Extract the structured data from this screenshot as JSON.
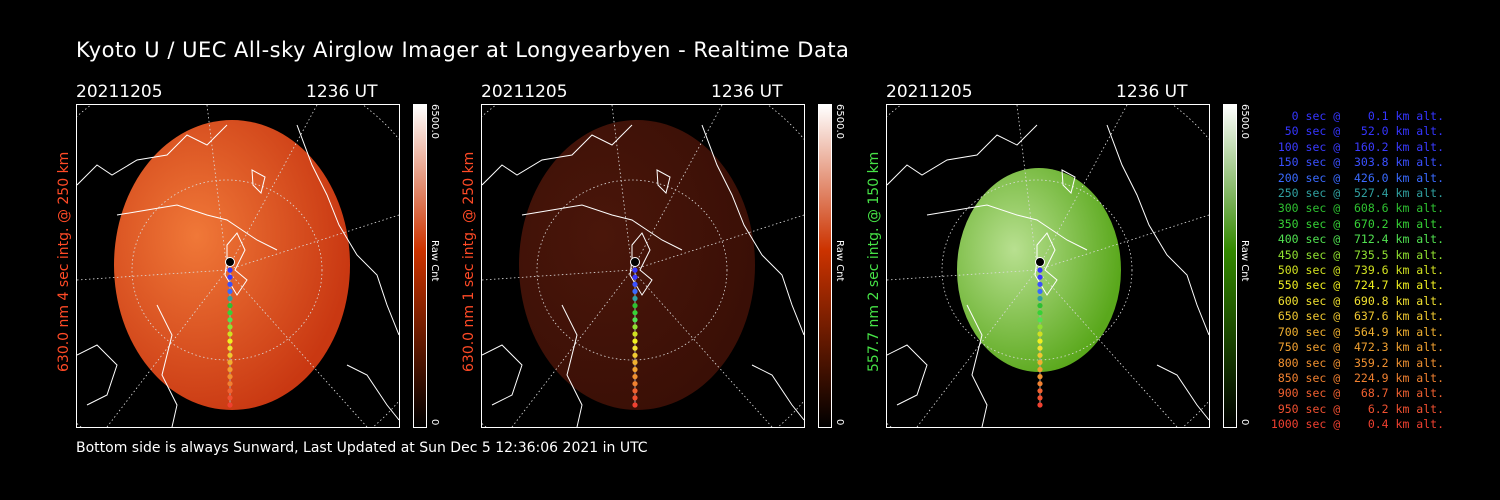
{
  "title": "Kyoto U / UEC All-sky Airglow Imager at Longyearbyen - Realtime Data",
  "footer": "Bottom side is always Sunward, Last Updated at Sun Dec  5 12:36:06 2021 in UTC",
  "panels": [
    {
      "date": "20211205",
      "time": "1236 UT",
      "ylabel": "630.0 nm 4 sec intg. @ 250 km",
      "label_color": "#ff4a26",
      "cbar_max": "6500.0",
      "cbar_unit": "Raw Cnt",
      "cbar_min": "0",
      "fill": "#c93812",
      "fill_light": "#f07838",
      "cbar_color": "#cc3300"
    },
    {
      "date": "20211205",
      "time": "1236 UT",
      "ylabel": "630.0 nm 1 sec intg. @ 250 km",
      "label_color": "#ff4a26",
      "cbar_max": "6500.0",
      "cbar_unit": "Raw Cnt",
      "cbar_min": "0",
      "fill": "#3a0f06",
      "fill_light": "#4a160a",
      "cbar_color": "#cc3300"
    },
    {
      "date": "20211205",
      "time": "1236 UT",
      "ylabel": "557.7 nm 2 sec intg. @ 150 km",
      "label_color": "#46e246",
      "cbar_max": "6500.0",
      "cbar_unit": "Raw Cnt",
      "cbar_min": "0",
      "fill": "#5aa81c",
      "fill_light": "#b8e090",
      "cbar_color": "#338800"
    }
  ],
  "legend": [
    {
      "text": "0 sec @    0.1 km alt.",
      "color": "#3535ff"
    },
    {
      "text": "50 sec @   52.0 km alt.",
      "color": "#3535ff"
    },
    {
      "text": "100 sec @  160.2 km alt.",
      "color": "#3a3aff"
    },
    {
      "text": "150 sec @  303.8 km alt.",
      "color": "#3a50ff"
    },
    {
      "text": "200 sec @  426.0 km alt.",
      "color": "#3a6aff"
    },
    {
      "text": "250 sec @  527.4 km alt.",
      "color": "#30a0a0"
    },
    {
      "text": "300 sec @  608.6 km alt.",
      "color": "#2ec030"
    },
    {
      "text": "350 sec @  670.2 km alt.",
      "color": "#36d236"
    },
    {
      "text": "400 sec @  712.4 km alt.",
      "color": "#50e050"
    },
    {
      "text": "450 sec @  735.5 km alt.",
      "color": "#90e030"
    },
    {
      "text": "500 sec @  739.6 km alt.",
      "color": "#d0e020"
    },
    {
      "text": "550 sec @  724.7 km alt.",
      "color": "#f0f020"
    },
    {
      "text": "600 sec @  690.8 km alt.",
      "color": "#f0e030"
    },
    {
      "text": "650 sec @  637.6 km alt.",
      "color": "#f0c830"
    },
    {
      "text": "700 sec @  564.9 km alt.",
      "color": "#f0b030"
    },
    {
      "text": "750 sec @  472.3 km alt.",
      "color": "#f0a030"
    },
    {
      "text": "800 sec @  359.2 km alt.",
      "color": "#f09030"
    },
    {
      "text": "850 sec @  224.9 km alt.",
      "color": "#f08030"
    },
    {
      "text": "900 sec @   68.7 km alt.",
      "color": "#f06030"
    },
    {
      "text": "950 sec @    6.2 km alt.",
      "color": "#f05030"
    },
    {
      "text": "1000 sec @    0.4 km alt.",
      "color": "#f04030"
    }
  ]
}
